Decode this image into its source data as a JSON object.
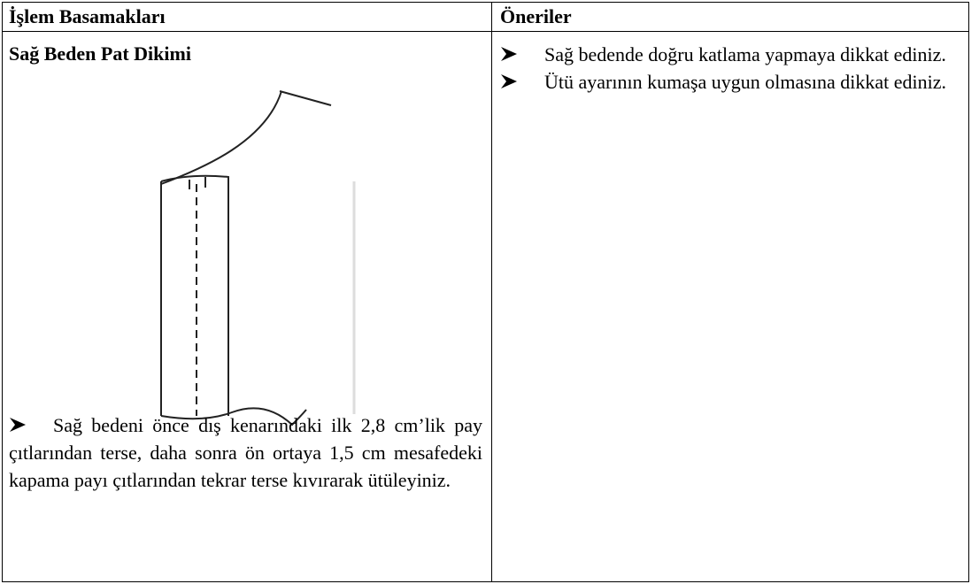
{
  "table": {
    "headers": [
      "İşlem Basamakları",
      "Öneriler"
    ],
    "step_title": "Sağ Beden Pat Dikimi",
    "steps": [
      "Sağ bedeni önce dış kenarındaki ilk 2,8 cm’lik pay çıtlarından terse, daha sonra ön ortaya 1,5 cm mesafedeki kapama payı çıtlarından tekrar terse kıvırarak ütüleyiniz."
    ],
    "suggestions": [
      "Sağ bedende doğru katlama yapmaya dikkat ediniz.",
      "Ütü ayarının kumaşa uygun olmasına dikkat ediniz."
    ]
  }
}
